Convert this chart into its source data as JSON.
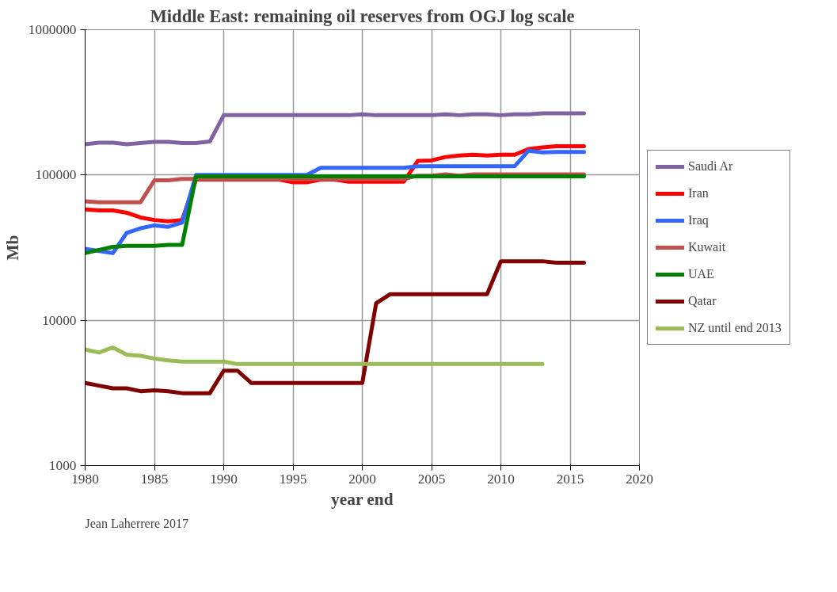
{
  "chart_data": {
    "type": "line",
    "title": "Middle East: remaining oil reserves from OGJ log scale",
    "xlabel": "year end",
    "ylabel": "Mb",
    "log": "y",
    "grid": true,
    "legend": "right",
    "line_style": "solid",
    "marker": "none",
    "x": [
      1980,
      1981,
      1982,
      1983,
      1984,
      1985,
      1986,
      1987,
      1988,
      1989,
      1990,
      1991,
      1992,
      1993,
      1994,
      1995,
      1996,
      1997,
      1998,
      1999,
      2000,
      2001,
      2002,
      2003,
      2004,
      2005,
      2006,
      2007,
      2008,
      2009,
      2010,
      2011,
      2012,
      2013,
      2014,
      2015,
      2016
    ],
    "xlim": [
      1980,
      2020
    ],
    "xticks": [
      1980,
      1985,
      1990,
      1995,
      2000,
      2005,
      2010,
      2015,
      2020
    ],
    "ylim": [
      1000,
      1000000
    ],
    "yticks": [
      1000,
      10000,
      100000,
      1000000
    ],
    "series": [
      {
        "name": "Saudi Ar",
        "color": "#8064a2",
        "values": [
          163000,
          167000,
          167000,
          163000,
          166000,
          169000,
          169000,
          166000,
          166000,
          170000,
          258000,
          258000,
          258000,
          258000,
          258000,
          258000,
          258000,
          258000,
          258000,
          258000,
          262000,
          258000,
          258000,
          258000,
          258000,
          258000,
          262000,
          258000,
          262000,
          262000,
          258000,
          262000,
          262000,
          266000,
          266000,
          266000,
          266000
        ]
      },
      {
        "name": "Iran",
        "color": "#ff0000",
        "values": [
          58000,
          57000,
          57000,
          55000,
          51000,
          49000,
          48000,
          49000,
          93000,
          93000,
          93000,
          93000,
          93000,
          93000,
          93000,
          89000,
          89000,
          93000,
          93000,
          90000,
          90000,
          90000,
          90000,
          90000,
          125000,
          126000,
          133000,
          136000,
          138000,
          136000,
          138000,
          138000,
          151000,
          155000,
          158000,
          158000,
          158000
        ]
      },
      {
        "name": "Iraq",
        "color": "#3366ff",
        "values": [
          31000,
          30000,
          29000,
          40000,
          43000,
          45000,
          44000,
          47000,
          100000,
          100000,
          100000,
          100000,
          100000,
          100000,
          100000,
          100000,
          100000,
          112000,
          112000,
          112000,
          112000,
          112000,
          112000,
          112000,
          115000,
          115000,
          115000,
          115000,
          115000,
          115000,
          115000,
          115000,
          147000,
          143000,
          144000,
          144000,
          144000
        ]
      },
      {
        "name": "Kuwait",
        "color": "#c0504d",
        "values": [
          66000,
          65000,
          65000,
          65000,
          65000,
          92000,
          92000,
          94000,
          94000,
          94000,
          94000,
          94000,
          94000,
          94000,
          94000,
          94000,
          94000,
          94000,
          94000,
          94000,
          94000,
          94000,
          94000,
          94000,
          99000,
          99000,
          101000,
          99000,
          101000,
          101000,
          101000,
          101000,
          101000,
          101000,
          101000,
          101000,
          101000
        ]
      },
      {
        "name": "UAE",
        "color": "#008000",
        "values": [
          29000,
          30500,
          32000,
          32500,
          32500,
          32500,
          33000,
          33000,
          98000,
          98000,
          98000,
          98000,
          98000,
          98000,
          98000,
          98000,
          98000,
          98000,
          98000,
          98000,
          98000,
          98000,
          98000,
          98000,
          98000,
          98000,
          98000,
          98000,
          98000,
          98000,
          98000,
          98000,
          98000,
          98000,
          98000,
          98000,
          98000
        ]
      },
      {
        "name": "Qatar",
        "color": "#800000",
        "values": [
          3700,
          3550,
          3400,
          3400,
          3250,
          3300,
          3250,
          3150,
          3150,
          3150,
          4500,
          4500,
          3700,
          3700,
          3700,
          3700,
          3700,
          3700,
          3700,
          3700,
          3700,
          13100,
          15100,
          15100,
          15100,
          15100,
          15100,
          15100,
          15100,
          15100,
          25500,
          25500,
          25500,
          25500,
          24900,
          24900,
          24900
        ]
      },
      {
        "name": "NZ until end 2013",
        "color": "#9bbb59",
        "x": [
          1980,
          1981,
          1982,
          1983,
          1984,
          1985,
          1986,
          1987,
          1988,
          1989,
          1990,
          1991,
          1992,
          1993,
          1994,
          1995,
          1996,
          1997,
          1998,
          1999,
          2000,
          2001,
          2002,
          2003,
          2004,
          2005,
          2006,
          2007,
          2008,
          2009,
          2010,
          2011,
          2012,
          2013
        ],
        "values": [
          6300,
          6000,
          6500,
          5800,
          5700,
          5450,
          5300,
          5200,
          5200,
          5200,
          5200,
          5000,
          5000,
          5000,
          5000,
          5000,
          5000,
          5000,
          5000,
          5000,
          5000,
          5000,
          5000,
          5000,
          5000,
          5000,
          5000,
          5000,
          5000,
          5000,
          5000,
          5000,
          5000,
          5000
        ]
      }
    ],
    "annotations": [
      "Jean Laherrere 2017"
    ]
  }
}
